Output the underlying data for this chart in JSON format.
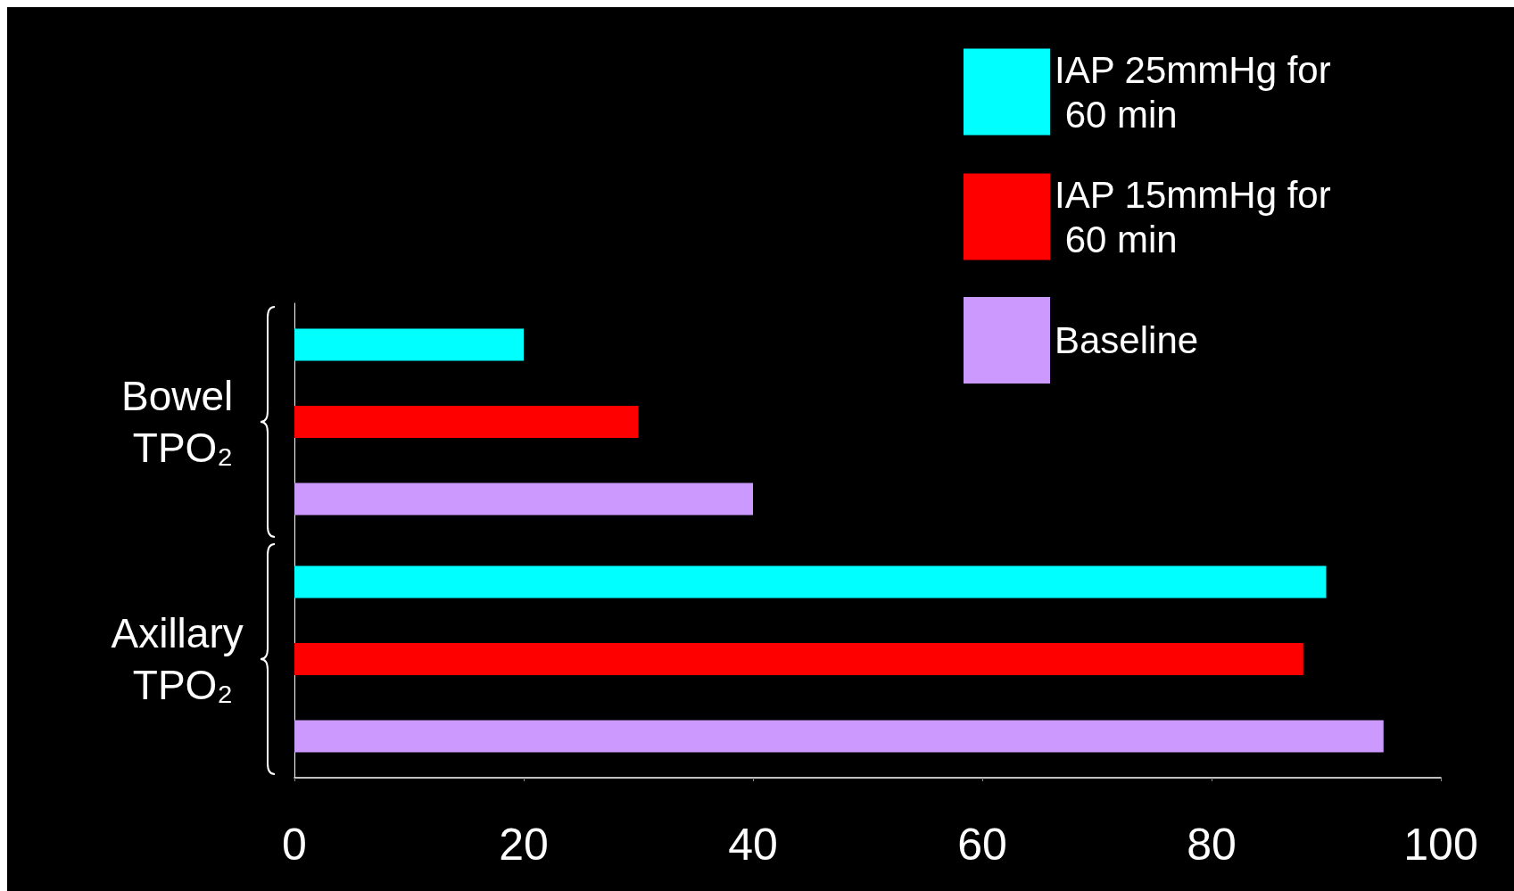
{
  "chart_data": {
    "type": "bar",
    "orientation": "horizontal",
    "categories": [
      "Bowel TPO₂",
      "Axillary TPO₂"
    ],
    "series": [
      {
        "name": "IAP 25mmHg for 60 min",
        "color": "#00ffff",
        "values": [
          20,
          90
        ]
      },
      {
        "name": "IAP 15mmHg for 60 min",
        "color": "#ff0000",
        "values": [
          30,
          88
        ]
      },
      {
        "name": "Baseline",
        "color": "#cc99ff",
        "values": [
          40,
          95
        ]
      }
    ],
    "xlim": [
      0,
      100
    ],
    "xticks": [
      0,
      20,
      40,
      60,
      80,
      100
    ],
    "grid": false,
    "legend": "top right"
  }
}
